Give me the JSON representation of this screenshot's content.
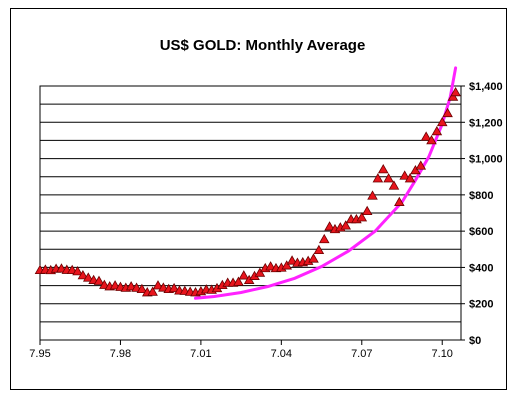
{
  "chart_data": {
    "type": "scatter",
    "title": "US$ GOLD: Monthly Average",
    "xlabel": "",
    "ylabel": "",
    "x_ticks": [
      "7.95",
      "7.98",
      "7.01",
      "7.04",
      "7.07",
      "7.10"
    ],
    "x_tick_values": [
      1995.5,
      1998.5,
      2001.5,
      2004.5,
      2007.5,
      2010.5
    ],
    "xlim": [
      1995.5,
      2011.2
    ],
    "y_ticks": [
      "$0",
      "$200",
      "$400",
      "$600",
      "$800",
      "$1,000",
      "$1,200",
      "$1,400"
    ],
    "ylim": [
      0,
      1400
    ],
    "grid": {
      "horizontal_every": 100,
      "vertical": false
    },
    "marker_color": "#e8141c",
    "marker_edge_color": "#6b0000",
    "curve_color": "#ff22ff",
    "series": [
      {
        "marker": "triangle",
        "points": [
          [
            1995.5,
            385
          ],
          [
            1995.7,
            387
          ],
          [
            1995.9,
            384
          ],
          [
            1996.1,
            392
          ],
          [
            1996.3,
            393
          ],
          [
            1996.5,
            386
          ],
          [
            1996.7,
            385
          ],
          [
            1996.9,
            378
          ],
          [
            1997.1,
            356
          ],
          [
            1997.3,
            343
          ],
          [
            1997.5,
            330
          ],
          [
            1997.7,
            325
          ],
          [
            1997.9,
            303
          ],
          [
            1998.1,
            295
          ],
          [
            1998.3,
            300
          ],
          [
            1998.5,
            292
          ],
          [
            1998.7,
            287
          ],
          [
            1998.9,
            295
          ],
          [
            1999.1,
            287
          ],
          [
            1999.3,
            280
          ],
          [
            1999.5,
            262
          ],
          [
            1999.7,
            265
          ],
          [
            1999.9,
            300
          ],
          [
            2000.1,
            288
          ],
          [
            2000.3,
            280
          ],
          [
            2000.5,
            285
          ],
          [
            2000.7,
            272
          ],
          [
            2000.9,
            270
          ],
          [
            2001.1,
            265
          ],
          [
            2001.3,
            262
          ],
          [
            2001.5,
            268
          ],
          [
            2001.7,
            278
          ],
          [
            2001.9,
            276
          ],
          [
            2002.1,
            285
          ],
          [
            2002.3,
            302
          ],
          [
            2002.5,
            315
          ],
          [
            2002.7,
            315
          ],
          [
            2002.9,
            320
          ],
          [
            2003.1,
            355
          ],
          [
            2003.3,
            330
          ],
          [
            2003.5,
            352
          ],
          [
            2003.7,
            370
          ],
          [
            2003.9,
            395
          ],
          [
            2004.1,
            405
          ],
          [
            2004.3,
            395
          ],
          [
            2004.5,
            398
          ],
          [
            2004.7,
            410
          ],
          [
            2004.9,
            437
          ],
          [
            2005.1,
            425
          ],
          [
            2005.3,
            428
          ],
          [
            2005.5,
            435
          ],
          [
            2005.7,
            448
          ],
          [
            2005.9,
            495
          ],
          [
            2006.1,
            555
          ],
          [
            2006.3,
            625
          ],
          [
            2006.5,
            610
          ],
          [
            2006.7,
            620
          ],
          [
            2006.9,
            630
          ],
          [
            2007.1,
            665
          ],
          [
            2007.3,
            665
          ],
          [
            2007.5,
            675
          ],
          [
            2007.7,
            710
          ],
          [
            2007.9,
            795
          ],
          [
            2008.1,
            890
          ],
          [
            2008.3,
            940
          ],
          [
            2008.5,
            890
          ],
          [
            2008.7,
            850
          ],
          [
            2008.9,
            760
          ],
          [
            2009.1,
            905
          ],
          [
            2009.3,
            890
          ],
          [
            2009.5,
            935
          ],
          [
            2009.7,
            960
          ],
          [
            2009.9,
            1120
          ],
          [
            2010.1,
            1100
          ],
          [
            2010.3,
            1150
          ],
          [
            2010.5,
            1200
          ],
          [
            2010.7,
            1250
          ],
          [
            2010.9,
            1340
          ],
          [
            2011.0,
            1365
          ]
        ]
      }
    ],
    "trend_curve": [
      [
        2001.3,
        230
      ],
      [
        2002.0,
        240
      ],
      [
        2003.0,
        262
      ],
      [
        2004.0,
        295
      ],
      [
        2005.0,
        340
      ],
      [
        2006.0,
        405
      ],
      [
        2007.0,
        490
      ],
      [
        2008.0,
        600
      ],
      [
        2009.0,
        760
      ],
      [
        2009.5,
        880
      ],
      [
        2010.0,
        1010
      ],
      [
        2010.5,
        1190
      ],
      [
        2010.8,
        1340
      ],
      [
        2011.0,
        1500
      ]
    ]
  }
}
